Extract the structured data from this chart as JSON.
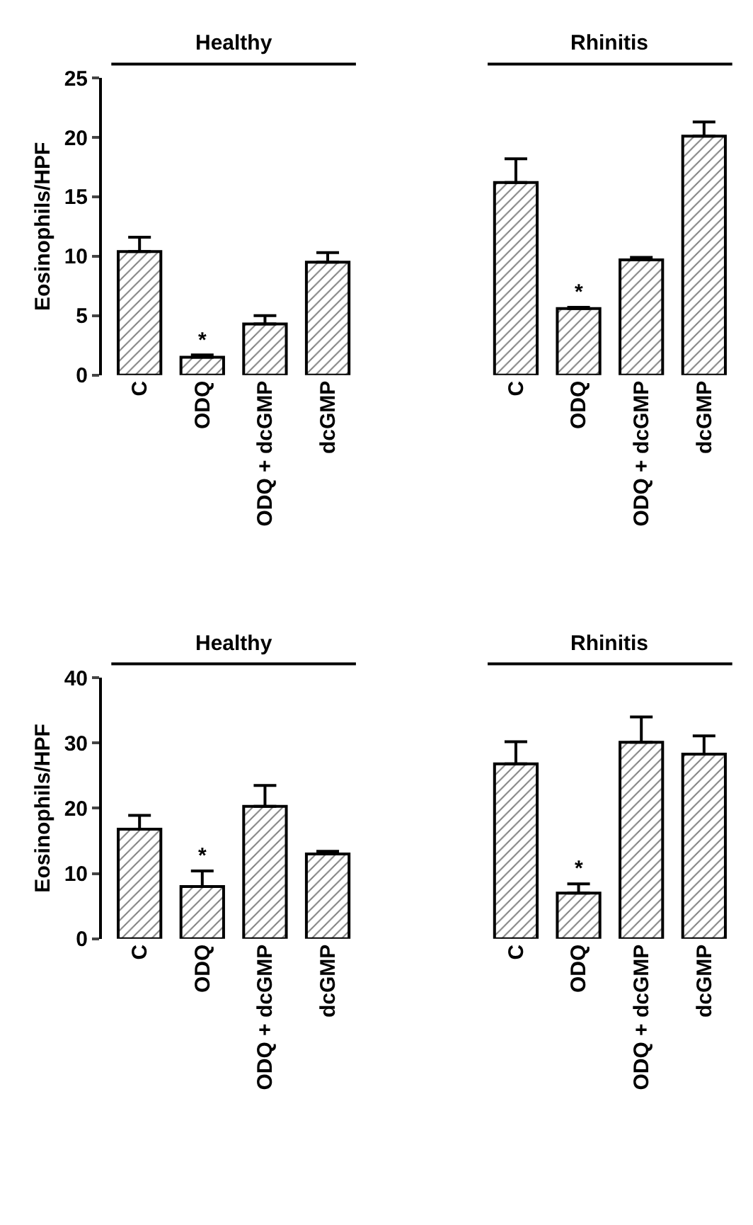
{
  "chart_data": [
    {
      "type": "bar",
      "ylabel": "Eosinophils/HPF",
      "annotations": [
        "Healthy",
        "Rhinitis"
      ],
      "categories": [
        "C",
        "ODQ",
        "ODQ + dcGMP",
        "dcGMP",
        null,
        null,
        "C",
        "ODQ",
        "ODQ + dcGMP",
        "dcGMP"
      ],
      "values": [
        10.4,
        1.5,
        4.3,
        9.5,
        null,
        null,
        16.2,
        5.6,
        9.7,
        20.1
      ],
      "errors": [
        [
          10.4,
          11.6
        ],
        [
          1.5,
          1.7
        ],
        [
          4.3,
          5.0
        ],
        [
          9.5,
          10.3
        ],
        null,
        null,
        [
          16.2,
          18.2
        ],
        [
          5.6,
          5.7
        ],
        [
          9.7,
          9.9
        ],
        [
          20.1,
          21.3
        ]
      ],
      "value_labels": [
        null,
        "*",
        null,
        null,
        null,
        null,
        null,
        "*",
        null,
        null
      ],
      "color": "#000000",
      "ylim": [
        0,
        25
      ],
      "yticks": [
        0,
        5,
        10,
        15,
        20,
        25
      ]
    },
    {
      "type": "bar",
      "ylabel": "Eosinophils/HPF",
      "annotations": [
        "Healthy",
        "Rhinitis"
      ],
      "categories": [
        "C",
        "ODQ",
        "ODQ + dcGMP",
        "dcGMP",
        null,
        null,
        "C",
        "ODQ",
        "ODQ + dcGMP",
        "dcGMP"
      ],
      "values": [
        16.8,
        8.0,
        20.3,
        13.0,
        null,
        null,
        26.8,
        7.0,
        30.1,
        28.3
      ],
      "errors": [
        [
          16.8,
          18.9
        ],
        [
          8.0,
          10.4
        ],
        [
          20.3,
          23.5
        ],
        [
          13.0,
          13.4
        ],
        null,
        null,
        [
          26.8,
          30.2
        ],
        [
          7.0,
          8.4
        ],
        [
          30.1,
          34.0
        ],
        [
          28.3,
          31.1
        ]
      ],
      "value_labels": [
        null,
        "*",
        null,
        null,
        null,
        null,
        null,
        "*",
        null,
        null
      ],
      "color": "#000000",
      "ylim": [
        0,
        40
      ],
      "yticks": [
        0,
        10,
        20,
        30,
        40
      ]
    }
  ]
}
